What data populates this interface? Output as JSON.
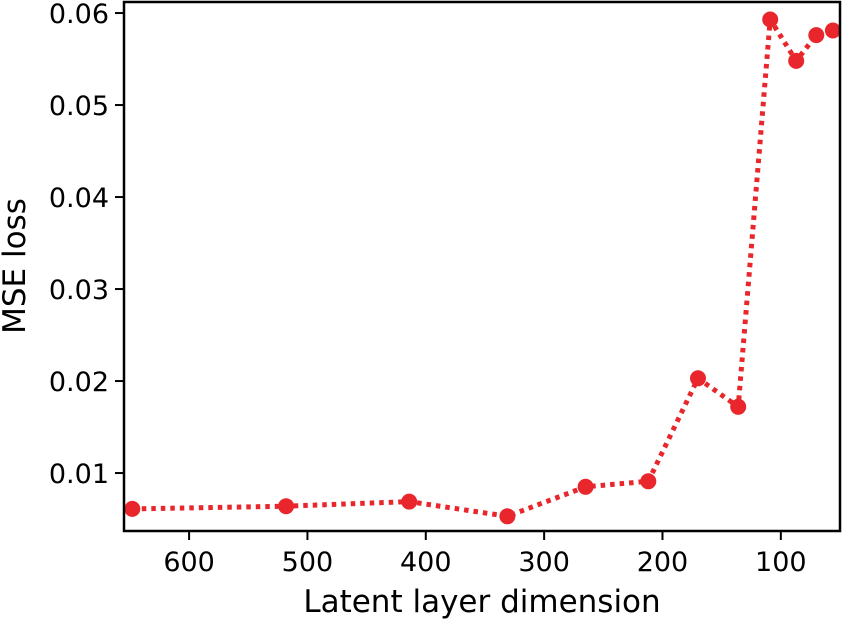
{
  "chart_data": {
    "type": "line",
    "title": "",
    "xlabel": "Latent layer dimension",
    "ylabel": "MSE loss",
    "xlim": [
      655,
      50
    ],
    "ylim": [
      0.0037,
      0.0612
    ],
    "x_inverted": true,
    "grid": false,
    "legend": "none",
    "xticks": [
      600,
      500,
      400,
      300,
      200,
      100
    ],
    "yticks": [
      0.01,
      0.02,
      0.03,
      0.04,
      0.05,
      0.06
    ],
    "xtick_labels": [
      "600",
      "500",
      "400",
      "300",
      "200",
      "100"
    ],
    "ytick_labels": [
      "0.01",
      "0.02",
      "0.03",
      "0.04",
      "0.05",
      "0.06"
    ],
    "series": [
      {
        "x": [
          648,
          518,
          414,
          331,
          265,
          212,
          170,
          136,
          109,
          87,
          70,
          56
        ],
        "y": [
          0.0061,
          0.0064,
          0.0069,
          0.0053,
          0.0085,
          0.0091,
          0.0203,
          0.0172,
          0.0593,
          0.0548,
          0.0576,
          0.0581
        ],
        "color": "#e8262b",
        "line_style": "dotted",
        "marker": "circle"
      }
    ]
  }
}
